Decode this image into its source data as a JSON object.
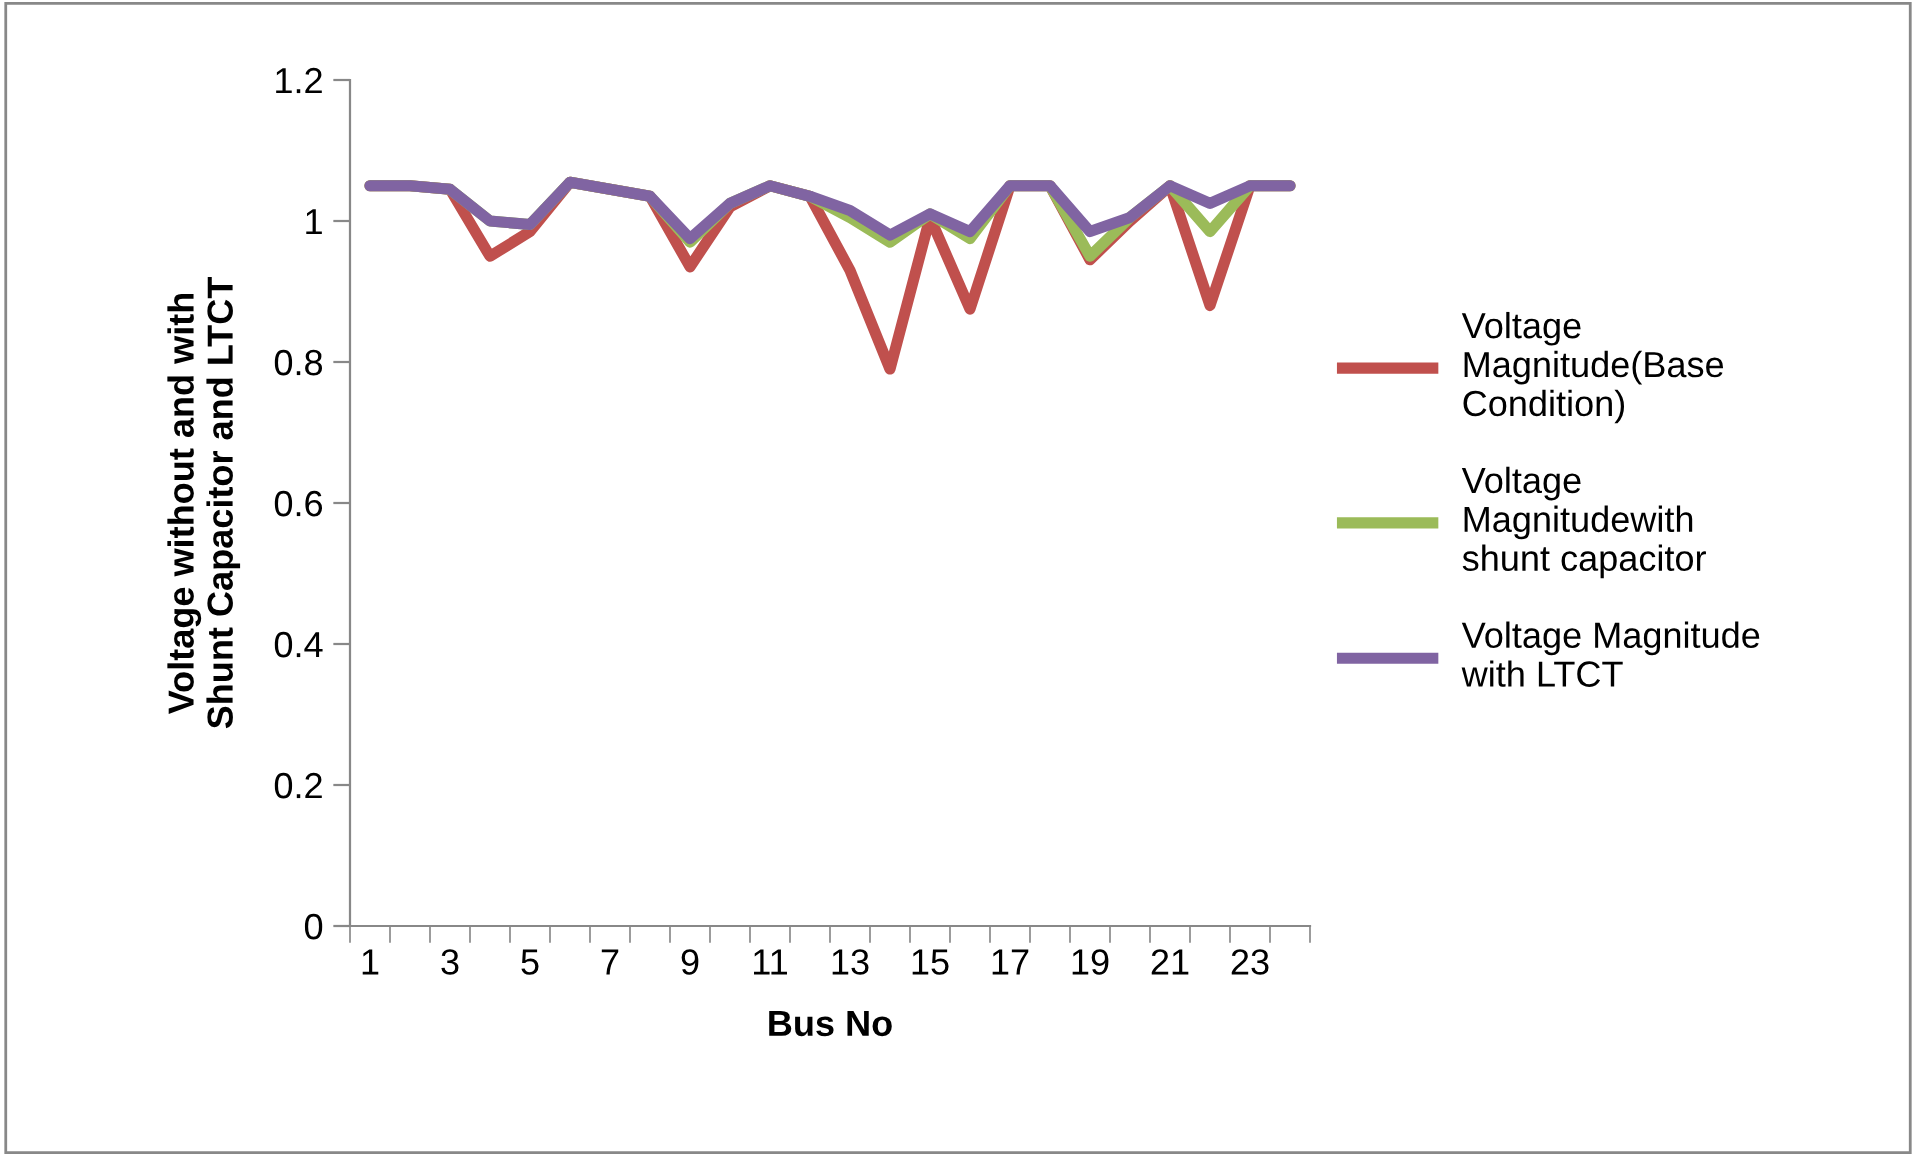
{
  "chart_data": {
    "type": "line",
    "xlabel": "Bus No",
    "ylabel": "Voltage without and with Shunt Capacitor and LTCT",
    "categories": [
      "1",
      null,
      "3",
      null,
      "5",
      null,
      "7",
      null,
      "9",
      null,
      "11",
      null,
      "13",
      null,
      "15",
      null,
      "17",
      null,
      "19",
      null,
      "21",
      null,
      "23",
      null
    ],
    "series": [
      {
        "name": "Voltage Magnitude(Base Condition)",
        "color": "#c0504d",
        "values": [
          1.05,
          1.05,
          1.045,
          0.95,
          0.985,
          1.055,
          1.045,
          1.035,
          0.935,
          1.02,
          1.05,
          1.035,
          0.93,
          0.79,
          1.005,
          0.875,
          1.05,
          1.05,
          0.945,
          1.0,
          1.05,
          0.88,
          1.05,
          1.05
        ]
      },
      {
        "name": "Voltage Magnitudewith shunt capacitor",
        "color": "#9bbb59",
        "values": [
          1.05,
          1.05,
          1.045,
          1.0,
          0.995,
          1.055,
          1.045,
          1.035,
          0.97,
          1.025,
          1.05,
          1.035,
          1.005,
          0.97,
          1.01,
          0.975,
          1.05,
          1.05,
          0.95,
          1.005,
          1.05,
          0.985,
          1.05,
          1.05
        ]
      },
      {
        "name": "Voltage Magnitude with LTCT",
        "color": "#8064a2",
        "values": [
          1.05,
          1.05,
          1.045,
          1.0,
          0.995,
          1.055,
          1.045,
          1.035,
          0.975,
          1.025,
          1.05,
          1.035,
          1.015,
          0.98,
          1.01,
          0.985,
          1.05,
          1.05,
          0.985,
          1.005,
          1.05,
          1.025,
          1.05,
          1.05
        ]
      }
    ],
    "ylim": [
      0,
      1.2
    ],
    "yticks": [
      0,
      0.2,
      0.4,
      0.6,
      0.8,
      1,
      1.2
    ],
    "grid": false,
    "legend": "right",
    "marker": "none",
    "line_style": "solid"
  }
}
